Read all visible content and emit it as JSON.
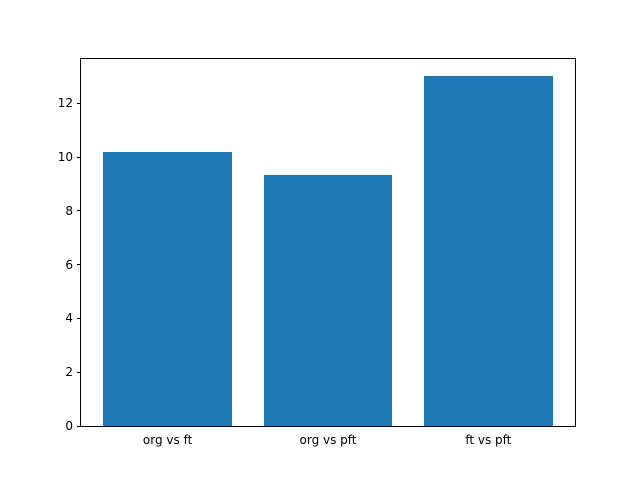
{
  "chart_data": {
    "type": "bar",
    "title": "",
    "xlabel": "",
    "ylabel": "",
    "categories": [
      "org vs ft",
      "org vs pft",
      "ft vs pft"
    ],
    "values": [
      10.2,
      9.33,
      13.0
    ],
    "yticks": [
      0,
      2,
      4,
      6,
      8,
      10,
      12
    ],
    "ylim": [
      0,
      13.65
    ],
    "xlim": [
      -0.54,
      2.54
    ],
    "bar_width": 0.8,
    "bar_color": "#1f77b4",
    "axis_color": "#000000",
    "background_color": "#ffffff",
    "grid": false,
    "legend": null
  }
}
